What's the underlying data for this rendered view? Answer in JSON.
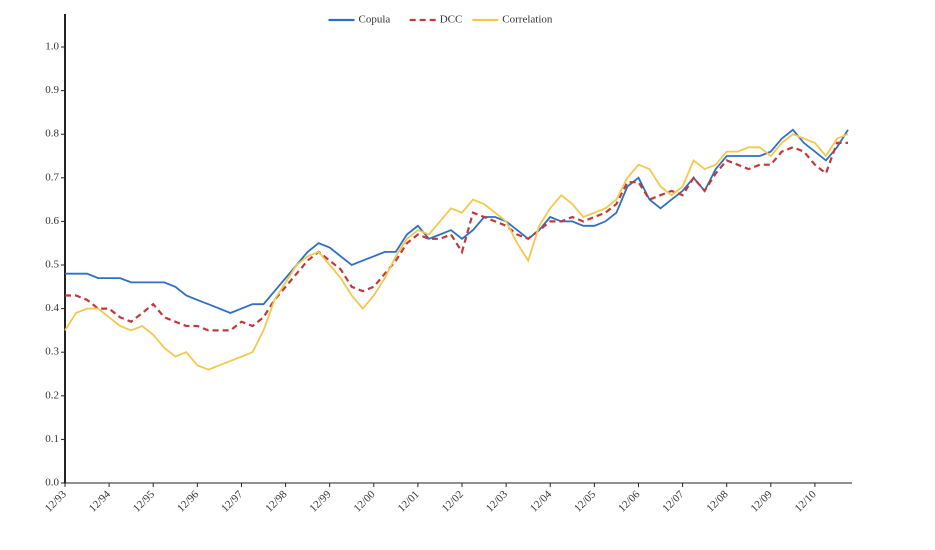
{
  "chart_data": {
    "type": "line",
    "x": [
      "12/93",
      "03/94",
      "06/94",
      "09/94",
      "12/94",
      "03/95",
      "06/95",
      "09/95",
      "12/95",
      "03/96",
      "06/96",
      "09/96",
      "12/96",
      "03/97",
      "06/97",
      "09/97",
      "12/97",
      "03/98",
      "06/98",
      "09/98",
      "12/98",
      "03/99",
      "06/99",
      "09/99",
      "12/99",
      "03/00",
      "06/00",
      "09/00",
      "12/00",
      "03/01",
      "06/01",
      "09/01",
      "12/01",
      "03/02",
      "06/02",
      "09/02",
      "12/02",
      "03/03",
      "06/03",
      "09/03",
      "12/03",
      "03/04",
      "06/04",
      "09/04",
      "12/04",
      "03/05",
      "06/05",
      "09/05",
      "12/05",
      "03/06",
      "06/06",
      "09/06",
      "12/06",
      "03/07",
      "06/07",
      "09/07",
      "12/07",
      "03/08",
      "06/08",
      "09/08",
      "12/08",
      "03/09",
      "06/09",
      "09/09",
      "12/09",
      "03/10",
      "06/10",
      "09/10",
      "12/10",
      "03/11",
      "06/11",
      "09/11"
    ],
    "xticks": [
      "12/93",
      "12/94",
      "12/95",
      "12/96",
      "12/97",
      "12/98",
      "12/99",
      "12/00",
      "12/01",
      "12/02",
      "12/03",
      "12/04",
      "12/05",
      "12/06",
      "12/07",
      "12/08",
      "12/09",
      "12/10"
    ],
    "series": [
      {
        "name": "Copula",
        "color": "#2e6fc4",
        "dash": "solid",
        "values": [
          0.48,
          0.48,
          0.48,
          0.47,
          0.47,
          0.47,
          0.46,
          0.46,
          0.46,
          0.46,
          0.45,
          0.43,
          0.42,
          0.41,
          0.4,
          0.39,
          0.4,
          0.41,
          0.41,
          0.44,
          0.47,
          0.5,
          0.53,
          0.55,
          0.54,
          0.52,
          0.5,
          0.51,
          0.52,
          0.53,
          0.53,
          0.57,
          0.59,
          0.56,
          0.57,
          0.58,
          0.56,
          0.58,
          0.61,
          0.61,
          0.6,
          0.58,
          0.56,
          0.58,
          0.61,
          0.6,
          0.6,
          0.59,
          0.59,
          0.6,
          0.62,
          0.68,
          0.7,
          0.65,
          0.63,
          0.65,
          0.67,
          0.7,
          0.67,
          0.72,
          0.75,
          0.75,
          0.75,
          0.75,
          0.76,
          0.79,
          0.81,
          0.78,
          0.76,
          0.74,
          0.77,
          0.81
        ]
      },
      {
        "name": "DCC",
        "color": "#c0393b",
        "dash": "dashed",
        "values": [
          0.43,
          0.43,
          0.42,
          0.4,
          0.4,
          0.38,
          0.37,
          0.39,
          0.41,
          0.38,
          0.37,
          0.36,
          0.36,
          0.35,
          0.35,
          0.35,
          0.37,
          0.36,
          0.38,
          0.42,
          0.45,
          0.48,
          0.51,
          0.53,
          0.51,
          0.49,
          0.45,
          0.44,
          0.45,
          0.48,
          0.51,
          0.55,
          0.57,
          0.56,
          0.56,
          0.57,
          0.53,
          0.62,
          0.61,
          0.6,
          0.59,
          0.57,
          0.56,
          0.58,
          0.6,
          0.6,
          0.61,
          0.6,
          0.61,
          0.62,
          0.64,
          0.69,
          0.69,
          0.65,
          0.66,
          0.67,
          0.66,
          0.7,
          0.67,
          0.71,
          0.74,
          0.73,
          0.72,
          0.73,
          0.73,
          0.76,
          0.77,
          0.76,
          0.73,
          0.71,
          0.78,
          0.78
        ]
      },
      {
        "name": "Correlation",
        "color": "#f2c94c",
        "dash": "solid",
        "values": [
          0.35,
          0.39,
          0.4,
          0.4,
          0.38,
          0.36,
          0.35,
          0.36,
          0.34,
          0.31,
          0.29,
          0.3,
          0.27,
          0.26,
          0.27,
          0.28,
          0.29,
          0.3,
          0.35,
          0.42,
          0.46,
          0.5,
          0.52,
          0.53,
          0.5,
          0.47,
          0.43,
          0.4,
          0.43,
          0.47,
          0.52,
          0.56,
          0.58,
          0.57,
          0.6,
          0.63,
          0.62,
          0.65,
          0.64,
          0.62,
          0.6,
          0.55,
          0.51,
          0.59,
          0.63,
          0.66,
          0.64,
          0.61,
          0.62,
          0.63,
          0.65,
          0.7,
          0.73,
          0.72,
          0.68,
          0.66,
          0.68,
          0.74,
          0.72,
          0.73,
          0.76,
          0.76,
          0.77,
          0.77,
          0.75,
          0.78,
          0.8,
          0.79,
          0.78,
          0.75,
          0.79,
          0.8
        ]
      }
    ],
    "ylim": [
      0,
      1
    ],
    "yticks": [
      {
        "value": 0,
        "label": "0.0"
      },
      0.1,
      0.2,
      0.3,
      0.4,
      0.5,
      0.6,
      0.7,
      0.8,
      0.9,
      {
        "value": 1,
        "label": "1.0"
      }
    ],
    "legend": "top"
  }
}
